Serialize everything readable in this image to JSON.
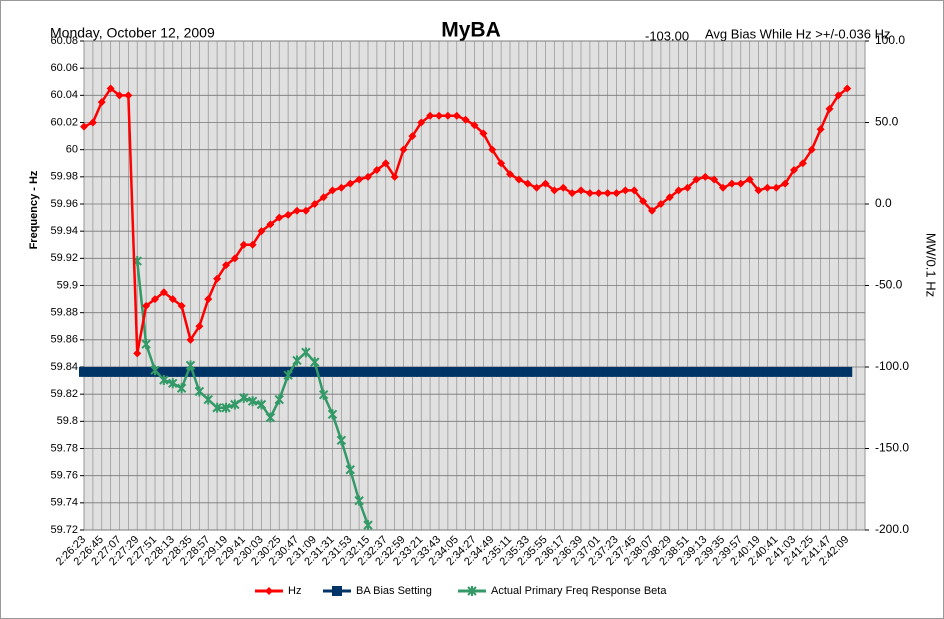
{
  "chart_data": {
    "type": "line",
    "title": "MyBA",
    "subtitle": "Monday, October 12, 2009",
    "bias_text": "-103.00",
    "annotation": "Avg Bias While Hz >+/-0.036 Hz",
    "ylabel": "Frequency - Hz",
    "y2label": "MW/0.1 Hz",
    "categories": [
      "2:26:23",
      null,
      "2:26:45",
      null,
      "2:27:07",
      null,
      "2:27:29",
      null,
      "2:27:51",
      null,
      "2:28:13",
      null,
      "2:28:35",
      null,
      "2:28:57",
      null,
      "2:29:19",
      null,
      "2:29:41",
      null,
      "2:30:03",
      null,
      "2:30:25",
      null,
      "2:30:47",
      null,
      "2:31:09",
      null,
      "2:31:31",
      null,
      "2:31:53",
      null,
      "2:32:15",
      null,
      "2:32:37",
      null,
      "2:32:59",
      null,
      "2:33:21",
      null,
      "2:33:43",
      null,
      "2:34:05",
      null,
      "2:34:27",
      null,
      "2:34:49",
      null,
      "2:35:11",
      null,
      "2:35:33",
      null,
      "2:35:55",
      null,
      "2:36:17",
      null,
      "2:36:39",
      null,
      "2:37:01",
      null,
      "2:37:23",
      null,
      "2:37:45",
      null,
      "2:38:07",
      null,
      "2:38:29",
      null,
      "2:38:51",
      null,
      "2:39:13",
      null,
      "2:39:35",
      null,
      "2:39:57",
      null,
      "2:40:19",
      null,
      "2:40:41",
      null,
      "2:41:03",
      null,
      "2:41:25",
      null,
      "2:41:47",
      null,
      "2:42:09"
    ],
    "series": [
      {
        "name": "Hz",
        "color": "#ff0000",
        "marker": "diamond",
        "values": [
          60.017,
          60.02,
          60.035,
          60.045,
          60.04,
          60.04,
          59.85,
          59.885,
          59.89,
          59.895,
          59.89,
          59.885,
          59.86,
          59.87,
          59.89,
          59.905,
          59.915,
          59.92,
          59.93,
          59.93,
          59.94,
          59.945,
          59.95,
          59.952,
          59.955,
          59.955,
          59.96,
          59.965,
          59.97,
          59.972,
          59.975,
          59.978,
          59.98,
          59.985,
          59.99,
          59.98,
          60.0,
          60.01,
          60.02,
          60.025,
          60.025,
          60.025,
          60.025,
          60.022,
          60.018,
          60.012,
          60.0,
          59.99,
          59.982,
          59.978,
          59.975,
          59.972,
          59.975,
          59.97,
          59.972,
          59.968,
          59.97,
          59.968,
          59.968,
          59.968,
          59.968,
          59.97,
          59.97,
          59.962,
          59.955,
          59.96,
          59.965,
          59.97,
          59.972,
          59.978,
          59.98,
          59.978,
          59.972,
          59.975,
          59.975,
          59.978,
          59.97,
          59.972,
          59.972,
          59.975,
          59.985,
          59.99,
          60.0,
          60.015,
          60.03,
          60.04,
          60.045
        ]
      },
      {
        "name": "BA Bias Setting",
        "color": "#003366",
        "marker": "square",
        "axis": "y2",
        "values": [
          -103,
          -103,
          -103,
          -103,
          -103,
          -103,
          -103,
          -103,
          -103,
          -103,
          -103,
          -103,
          -103,
          -103,
          -103,
          -103,
          -103,
          -103,
          -103,
          -103,
          -103,
          -103,
          -103,
          -103,
          -103,
          -103,
          -103,
          -103,
          -103,
          -103,
          -103,
          -103,
          -103,
          -103,
          -103,
          -103,
          -103,
          -103,
          -103,
          -103,
          -103,
          -103,
          -103,
          -103,
          -103,
          -103,
          -103,
          -103,
          -103,
          -103,
          -103,
          -103,
          -103,
          -103,
          -103,
          -103,
          -103,
          -103,
          -103,
          -103,
          -103,
          -103,
          -103,
          -103,
          -103,
          -103,
          -103,
          -103,
          -103,
          -103,
          -103,
          -103,
          -103,
          -103,
          -103,
          -103,
          -103,
          -103,
          -103,
          -103,
          -103,
          -103,
          -103,
          -103,
          -103,
          -103,
          -103
        ]
      },
      {
        "name": "Actual Primary Freq Response Beta",
        "color": "#339966",
        "marker": "cross",
        "axis": "y2",
        "values": [
          null,
          null,
          null,
          null,
          null,
          null,
          -35,
          -86,
          -102,
          -108,
          -110,
          -113,
          -99,
          -115,
          -120,
          -125,
          -125,
          -123,
          -119,
          -121,
          -123,
          -131,
          -120,
          -105,
          -96,
          -91,
          -97,
          -117,
          -129,
          -145,
          -163,
          -182,
          -197,
          null,
          null,
          null,
          null,
          null,
          null,
          null,
          null,
          null,
          null,
          null,
          null,
          null,
          null,
          null,
          null,
          null,
          null,
          null,
          null,
          null,
          null,
          null,
          null,
          null,
          null,
          null,
          null,
          null,
          null,
          null,
          null,
          null,
          null,
          null,
          null,
          null,
          null,
          null,
          null,
          null,
          null,
          null,
          null,
          null,
          null,
          null,
          null,
          null,
          null,
          null,
          null,
          null,
          null
        ]
      }
    ],
    "ylim": [
      59.72,
      60.08
    ],
    "yticks": [
      59.72,
      59.74,
      59.76,
      59.78,
      59.8,
      59.82,
      59.84,
      59.86,
      59.88,
      59.9,
      59.92,
      59.94,
      59.96,
      59.98,
      60,
      60.02,
      60.04,
      60.06,
      60.08
    ],
    "y2lim": [
      -200,
      100
    ],
    "y2ticks": [
      {
        "value": -200,
        "label": "-200.0"
      },
      {
        "value": -150,
        "label": "-150.0"
      },
      {
        "value": -100,
        "label": "-100.0"
      },
      {
        "value": -50,
        "label": "-50.0"
      },
      {
        "value": 0,
        "label": "0.0"
      },
      {
        "value": 50,
        "label": "50.0"
      },
      {
        "value": 100,
        "label": "100.0"
      }
    ],
    "grid": true,
    "legend": "bottom"
  }
}
